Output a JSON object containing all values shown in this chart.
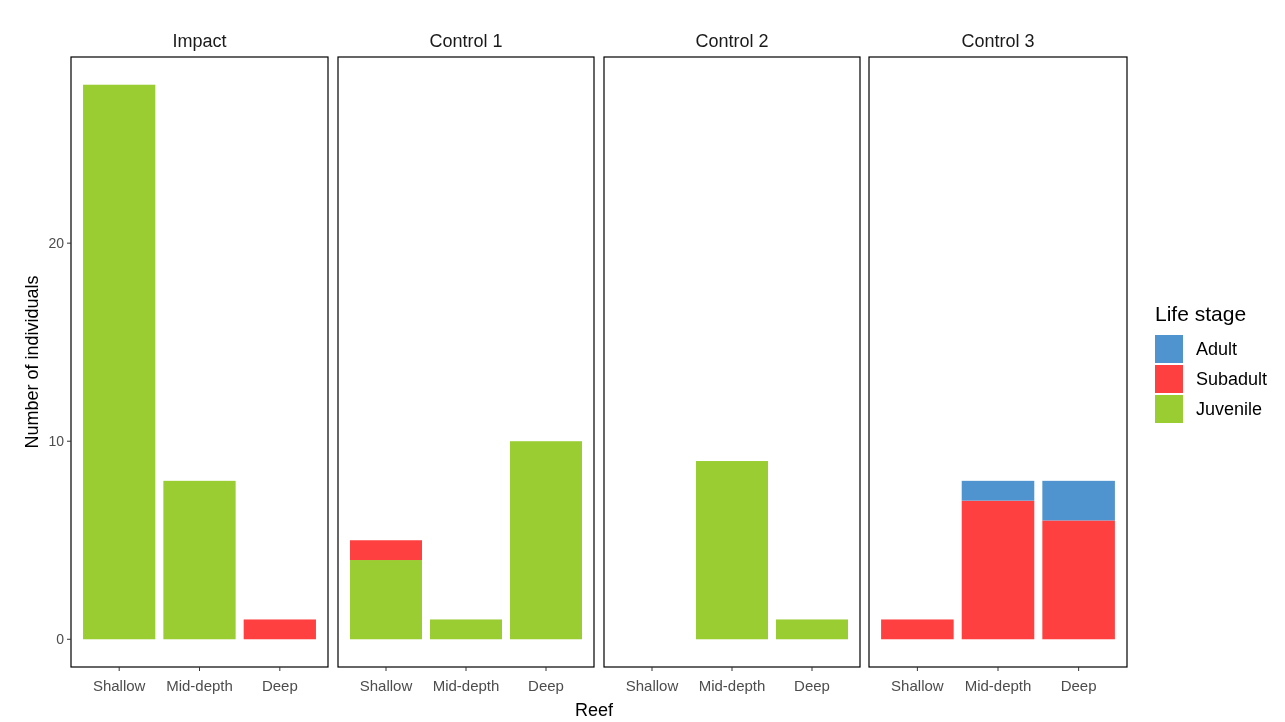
{
  "chart_data": [
    {
      "type": "bar",
      "title": "Impact",
      "stacked": true,
      "categories": [
        "Shallow",
        "Mid-depth",
        "Deep"
      ],
      "ylim": [
        -1.4,
        29.4
      ],
      "yticks": [
        0,
        10,
        20
      ],
      "ylabel": "Number of individuals",
      "series": [
        {
          "color": "#9acd32",
          "values": [
            28,
            8,
            null
          ]
        },
        {
          "color": "#fe4040",
          "values": [
            null,
            null,
            1
          ]
        }
      ]
    },
    {
      "type": "bar",
      "title": "Control 1",
      "stacked": true,
      "categories": [
        "Shallow",
        "Mid-depth",
        "Deep"
      ],
      "ylim": [
        -1.4,
        29.4
      ],
      "tick_labels": "x",
      "xlabel": "Reef",
      "series": [
        {
          "color": "#9acd32",
          "values": [
            4,
            1,
            10
          ]
        },
        {
          "color": "#fe4040",
          "values": [
            1,
            null,
            null
          ]
        }
      ]
    },
    {
      "type": "bar",
      "title": "Control 2",
      "stacked": true,
      "categories": [
        "Shallow",
        "Mid-depth",
        "Deep"
      ],
      "ylim": [
        -1.4,
        29.4
      ],
      "tick_labels": "x",
      "series": [
        {
          "color": "#9acd32",
          "values": [
            null,
            9,
            1
          ]
        }
      ]
    },
    {
      "type": "bar",
      "title": "Control 3",
      "stacked": true,
      "categories": [
        "Shallow",
        "Mid-depth",
        "Deep"
      ],
      "ylim": [
        -1.4,
        29.4
      ],
      "tick_labels": "x",
      "legend": "right",
      "legend_title": "Life stage",
      "series": [
        {
          "name": "Juvenile",
          "color": "#9acd32",
          "values": [
            null,
            null,
            null
          ]
        },
        {
          "name": "Subadult",
          "color": "#fe4040",
          "values": [
            1,
            7,
            6
          ]
        },
        {
          "name": "Adult",
          "color": "#4f93cf",
          "values": [
            null,
            1,
            2
          ]
        }
      ]
    }
  ]
}
